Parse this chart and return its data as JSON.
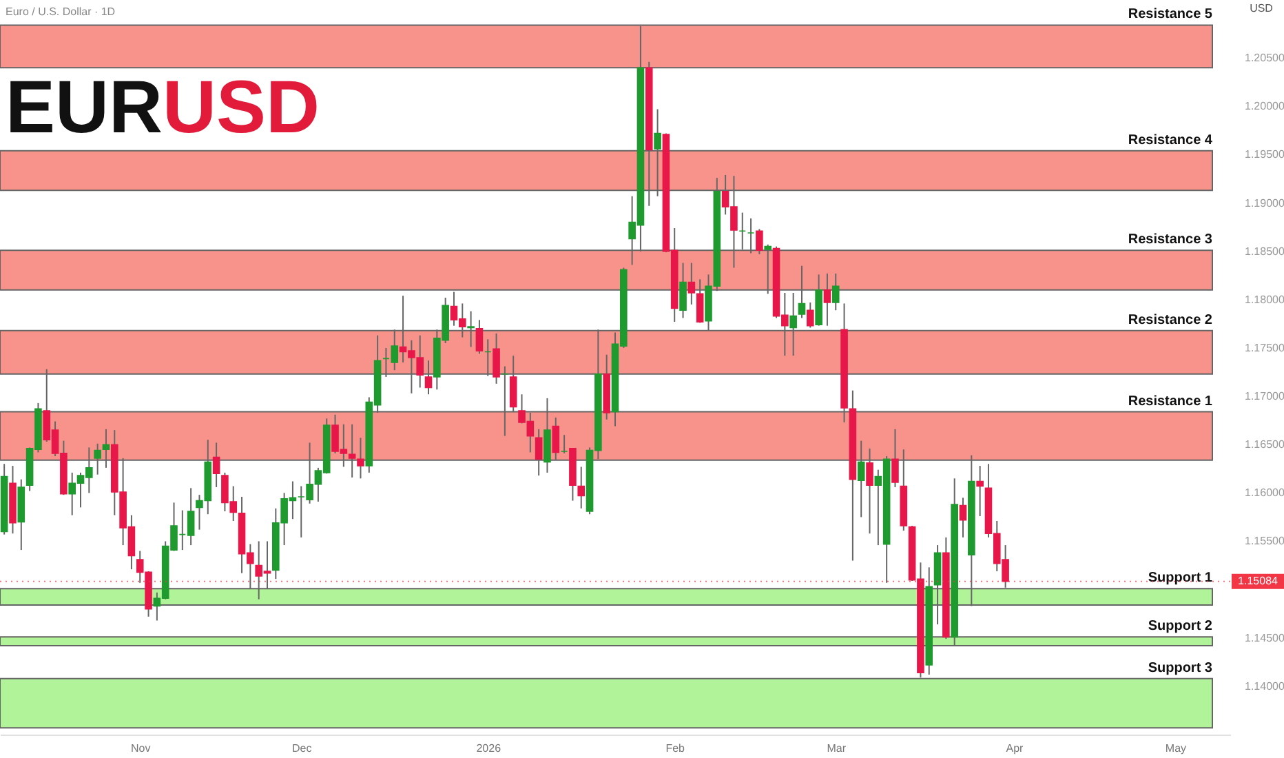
{
  "chart_data": {
    "type": "candlestick",
    "title": "EURUSD",
    "subtitle": "Euro / U.S. Dollar · 1D",
    "ylabel": "USD",
    "categories": [
      null,
      null,
      null,
      null,
      null,
      null,
      null,
      null,
      null,
      null,
      null,
      null,
      null,
      null,
      null,
      null,
      "Nov",
      null,
      null,
      null,
      null,
      null,
      null,
      null,
      null,
      null,
      null,
      null,
      null,
      null,
      null,
      null,
      null,
      null,
      null,
      "Dec",
      null,
      null,
      null,
      null,
      null,
      null,
      null,
      null,
      null,
      null,
      null,
      null,
      null,
      null,
      null,
      null,
      null,
      null,
      null,
      null,
      null,
      "2026",
      null,
      null,
      null,
      null,
      null,
      null,
      null,
      null,
      null,
      null,
      null,
      null,
      null,
      null,
      null,
      null,
      null,
      null,
      null,
      null,
      null,
      "Feb",
      null,
      null,
      null,
      null,
      null,
      null,
      null,
      null,
      null,
      null,
      null,
      null,
      null,
      null,
      null,
      null,
      null,
      null,
      "Mar",
      null,
      null,
      null,
      null,
      null,
      null,
      null,
      null,
      null,
      null,
      null,
      null,
      null,
      null,
      null,
      null,
      null,
      null,
      null,
      null,
      "Apr",
      null,
      null,
      null,
      null,
      null,
      null,
      null,
      null,
      null,
      null,
      null,
      null,
      null,
      null,
      null,
      null,
      null,
      null,
      "May",
      null,
      null,
      null,
      null,
      null,
      null
    ],
    "ohlc": [
      [
        1.156,
        1.163,
        1.1557,
        1.1617
      ],
      [
        1.161,
        1.1628,
        1.1558,
        1.1569
      ],
      [
        1.157,
        1.1614,
        1.1541,
        1.1606
      ],
      [
        1.1608,
        1.1647,
        1.1602,
        1.1646
      ],
      [
        1.1645,
        1.1693,
        1.1642,
        1.1687
      ],
      [
        1.1685,
        1.1728,
        1.1653,
        1.1655
      ],
      [
        1.1665,
        1.1674,
        1.1638,
        1.1641
      ],
      [
        1.1641,
        1.1654,
        1.1598,
        1.1599
      ],
      [
        1.1599,
        1.1621,
        1.1577,
        1.161
      ],
      [
        1.161,
        1.1621,
        1.1585,
        1.1618
      ],
      [
        1.1616,
        1.1647,
        1.16,
        1.1626
      ],
      [
        1.1636,
        1.1651,
        1.1619,
        1.1644
      ],
      [
        1.1645,
        1.1666,
        1.1626,
        1.165
      ],
      [
        1.165,
        1.1665,
        1.1577,
        1.1601
      ],
      [
        1.1601,
        1.1636,
        1.1546,
        1.1564
      ],
      [
        1.1565,
        1.1577,
        1.1521,
        1.1535
      ],
      [
        1.1531,
        1.154,
        1.1507,
        1.1518
      ],
      [
        1.1518,
        1.1519,
        1.1472,
        1.148
      ],
      [
        1.1483,
        1.1497,
        1.1468,
        1.1491
      ],
      [
        1.1491,
        1.155,
        1.149,
        1.1545
      ],
      [
        1.1541,
        1.159,
        1.154,
        1.1566
      ],
      [
        1.1557,
        1.1582,
        1.1541,
        1.1557
      ],
      [
        1.1556,
        1.1605,
        1.1546,
        1.1581
      ],
      [
        1.1585,
        1.1598,
        1.1562,
        1.1592
      ],
      [
        1.1592,
        1.1655,
        1.1578,
        1.1632
      ],
      [
        1.1637,
        1.1652,
        1.1606,
        1.162
      ],
      [
        1.1618,
        1.1621,
        1.1581,
        1.159
      ],
      [
        1.1591,
        1.1607,
        1.1571,
        1.158
      ],
      [
        1.1579,
        1.1596,
        1.1517,
        1.1537
      ],
      [
        1.1538,
        1.1547,
        1.1501,
        1.1527
      ],
      [
        1.1525,
        1.155,
        1.149,
        1.1514
      ],
      [
        1.1519,
        1.155,
        1.1501,
        1.1517
      ],
      [
        1.152,
        1.1584,
        1.1511,
        1.1569
      ],
      [
        1.1569,
        1.16,
        1.1546,
        1.1594
      ],
      [
        1.1592,
        1.1612,
        1.1573,
        1.1595
      ],
      [
        1.1596,
        1.1607,
        1.1554,
        1.1596
      ],
      [
        1.1593,
        1.1652,
        1.1589,
        1.1609
      ],
      [
        1.1609,
        1.1626,
        1.1591,
        1.1623
      ],
      [
        1.1621,
        1.1677,
        1.162,
        1.167
      ],
      [
        1.167,
        1.1681,
        1.1641,
        1.1643
      ],
      [
        1.1645,
        1.1671,
        1.1627,
        1.1641
      ],
      [
        1.164,
        1.1671,
        1.1616,
        1.1636
      ],
      [
        1.1635,
        1.1657,
        1.1615,
        1.1628
      ],
      [
        1.1628,
        1.1699,
        1.1621,
        1.1694
      ],
      [
        1.1691,
        1.1763,
        1.1683,
        1.1737
      ],
      [
        1.1739,
        1.175,
        1.172,
        1.1739
      ],
      [
        1.1735,
        1.1769,
        1.1727,
        1.1752
      ],
      [
        1.1751,
        1.1804,
        1.1735,
        1.1746
      ],
      [
        1.1747,
        1.1758,
        1.1703,
        1.174
      ],
      [
        1.174,
        1.1763,
        1.1709,
        1.1722
      ],
      [
        1.172,
        1.1737,
        1.1702,
        1.1709
      ],
      [
        1.172,
        1.1769,
        1.1707,
        1.176
      ],
      [
        1.1758,
        1.1802,
        1.1755,
        1.1794
      ],
      [
        1.1793,
        1.1808,
        1.1773,
        1.1779
      ],
      [
        1.178,
        1.1796,
        1.1761,
        1.1772
      ],
      [
        1.1772,
        1.1788,
        1.1751,
        1.1771
      ],
      [
        1.177,
        1.1779,
        1.1744,
        1.1747
      ],
      [
        1.1746,
        1.1759,
        1.1721,
        1.1746
      ],
      [
        1.1749,
        1.1765,
        1.1713,
        1.172
      ],
      [
        1.1723,
        1.1731,
        1.1659,
        1.1723
      ],
      [
        1.172,
        1.1742,
        1.1684,
        1.1689
      ],
      [
        1.1685,
        1.1702,
        1.1672,
        1.1673
      ],
      [
        1.1674,
        1.1683,
        1.1642,
        1.1659
      ],
      [
        1.1657,
        1.1666,
        1.1618,
        1.1635
      ],
      [
        1.1632,
        1.1698,
        1.1621,
        1.1665
      ],
      [
        1.1669,
        1.1678,
        1.1634,
        1.1642
      ],
      [
        1.1643,
        1.166,
        1.1641,
        1.1643
      ],
      [
        1.1646,
        1.1646,
        1.1592,
        1.1608
      ],
      [
        1.1607,
        1.1627,
        1.1584,
        1.1597
      ],
      [
        1.1581,
        1.1647,
        1.1578,
        1.1644
      ],
      [
        1.1644,
        1.1769,
        1.1635,
        1.1723
      ],
      [
        1.1723,
        1.1743,
        1.1676,
        1.1683
      ],
      [
        1.1684,
        1.1766,
        1.1669,
        1.1754
      ],
      [
        1.1752,
        1.1833,
        1.175,
        1.1831
      ],
      [
        1.1863,
        1.1907,
        1.1836,
        1.188
      ],
      [
        1.1877,
        1.2083,
        1.185,
        1.204
      ],
      [
        1.204,
        1.2046,
        1.1897,
        1.1955
      ],
      [
        1.1956,
        1.1997,
        1.1907,
        1.1972
      ],
      [
        1.1971,
        1.1972,
        1.1849,
        1.185
      ],
      [
        1.1851,
        1.1874,
        1.1777,
        1.1791
      ],
      [
        1.1789,
        1.1838,
        1.1781,
        1.1818
      ],
      [
        1.1818,
        1.1838,
        1.1795,
        1.1807
      ],
      [
        1.1806,
        1.1821,
        1.1776,
        1.1777
      ],
      [
        1.1778,
        1.1826,
        1.1768,
        1.1814
      ],
      [
        1.1814,
        1.1926,
        1.1809,
        1.1912
      ],
      [
        1.1912,
        1.1929,
        1.1888,
        1.1896
      ],
      [
        1.1896,
        1.1928,
        1.1833,
        1.1872
      ],
      [
        1.1871,
        1.189,
        1.1852,
        1.1871
      ],
      [
        1.1869,
        1.1884,
        1.1848,
        1.1869
      ],
      [
        1.1871,
        1.1873,
        1.1847,
        1.1851
      ],
      [
        1.1852,
        1.1857,
        1.1806,
        1.1855
      ],
      [
        1.1853,
        1.1855,
        1.1781,
        1.1783
      ],
      [
        1.1784,
        1.1807,
        1.1742,
        1.1773
      ],
      [
        1.1771,
        1.1807,
        1.1742,
        1.1783
      ],
      [
        1.1785,
        1.1835,
        1.1781,
        1.1796
      ],
      [
        1.1789,
        1.1797,
        1.1771,
        1.1773
      ],
      [
        1.1774,
        1.1826,
        1.1773,
        1.181
      ],
      [
        1.181,
        1.1827,
        1.1773,
        1.1797
      ],
      [
        1.1797,
        1.1827,
        1.1789,
        1.1814
      ],
      [
        1.1769,
        1.1796,
        1.1673,
        1.1688
      ],
      [
        1.1687,
        1.1706,
        1.153,
        1.1614
      ],
      [
        1.1613,
        1.1654,
        1.1575,
        1.1632
      ],
      [
        1.1631,
        1.1646,
        1.1558,
        1.1608
      ],
      [
        1.1608,
        1.1624,
        1.1546,
        1.1617
      ],
      [
        1.1547,
        1.1638,
        1.1507,
        1.1635
      ],
      [
        1.1635,
        1.1666,
        1.1606,
        1.1611
      ],
      [
        1.1607,
        1.1645,
        1.1561,
        1.1566
      ],
      [
        1.1565,
        1.1566,
        1.1509,
        1.151
      ],
      [
        1.1511,
        1.1528,
        1.1409,
        1.1414
      ],
      [
        1.1422,
        1.1523,
        1.1412,
        1.1503
      ],
      [
        1.1505,
        1.1546,
        1.1464,
        1.1538
      ],
      [
        1.1538,
        1.1554,
        1.1449,
        1.1451
      ],
      [
        1.1451,
        1.1615,
        1.1442,
        1.1588
      ],
      [
        1.1587,
        1.1595,
        1.1554,
        1.1572
      ],
      [
        1.1536,
        1.1639,
        1.1483,
        1.1612
      ],
      [
        1.1612,
        1.1628,
        1.1576,
        1.1607
      ],
      [
        1.1605,
        1.163,
        1.1554,
        1.1558
      ],
      [
        1.1558,
        1.1571,
        1.1519,
        1.1527
      ],
      [
        1.1531,
        1.1546,
        1.1502,
        1.15084
      ],
      null,
      null,
      null,
      null,
      null,
      null,
      null,
      null,
      null,
      null,
      null,
      null,
      null,
      null,
      null,
      null,
      null,
      null,
      null,
      null,
      null,
      null,
      null,
      null,
      null,
      null
    ],
    "colors": [
      "#1e9a2f",
      "#e8174a",
      "#1e9a2f",
      "#1e9a2f",
      "#1e9a2f",
      "#e8174a",
      "#e8174a",
      "#e8174a",
      "#1e9a2f",
      "#1e9a2f",
      "#1e9a2f",
      "#1e9a2f",
      "#1e9a2f",
      "#e8174a",
      "#e8174a",
      "#e8174a",
      "#e8174a",
      "#e8174a",
      "#1e9a2f",
      "#1e9a2f",
      "#1e9a2f",
      "#1e9a2f",
      "#1e9a2f",
      "#1e9a2f",
      "#1e9a2f",
      "#e8174a",
      "#e8174a",
      "#e8174a",
      "#e8174a",
      "#e8174a",
      "#e8174a",
      "#e8174a",
      "#1e9a2f",
      "#1e9a2f",
      "#1e9a2f",
      "#1e9a2f",
      "#1e9a2f",
      "#1e9a2f",
      "#1e9a2f",
      "#e8174a",
      "#e8174a",
      "#e8174a",
      "#e8174a",
      "#1e9a2f",
      "#1e9a2f",
      "#1e9a2f",
      "#1e9a2f",
      "#e8174a",
      "#e8174a",
      "#e8174a",
      "#e8174a",
      "#1e9a2f",
      "#1e9a2f",
      "#e8174a",
      "#e8174a",
      "#1e9a2f",
      "#e8174a",
      "#1e9a2f",
      "#e8174a",
      "#1e9a2f",
      "#e8174a",
      "#e8174a",
      "#e8174a",
      "#e8174a",
      "#1e9a2f",
      "#e8174a",
      "#1e9a2f",
      "#e8174a",
      "#e8174a",
      "#1e9a2f",
      "#1e9a2f",
      "#e8174a",
      "#1e9a2f",
      "#1e9a2f",
      "#1e9a2f",
      "#1e9a2f",
      "#e8174a",
      "#1e9a2f",
      "#e8174a",
      "#e8174a",
      "#1e9a2f",
      "#e8174a",
      "#e8174a",
      "#1e9a2f",
      "#1e9a2f",
      "#e8174a",
      "#e8174a",
      "#1e9a2f",
      "#1e9a2f",
      "#e8174a",
      "#1e9a2f",
      "#e8174a",
      "#e8174a",
      "#1e9a2f",
      "#1e9a2f",
      "#e8174a",
      "#1e9a2f",
      "#e8174a",
      "#1e9a2f",
      "#e8174a",
      "#e8174a",
      "#1e9a2f",
      "#e8174a",
      "#1e9a2f",
      "#1e9a2f",
      "#e8174a",
      "#e8174a",
      "#e8174a",
      "#e8174a",
      "#1e9a2f",
      "#1e9a2f",
      "#e8174a",
      "#1e9a2f",
      "#e8174a",
      "#1e9a2f",
      "#e8174a",
      "#e8174a",
      "#e8174a",
      "#e8174a",
      null,
      null,
      null,
      null,
      null,
      null,
      null,
      null,
      null,
      null,
      null,
      null,
      null,
      null,
      null,
      null,
      null,
      null,
      null,
      null,
      null,
      null,
      null,
      null,
      null,
      null
    ],
    "ylim": [
      1.135,
      1.211
    ],
    "yticks": [
      {
        "value": 1.14,
        "label": "1.14000"
      },
      {
        "value": 1.145,
        "label": "1.14500"
      },
      {
        "value": 1.155,
        "label": "1.15500"
      },
      {
        "value": 1.16,
        "label": "1.16000"
      },
      {
        "value": 1.165,
        "label": "1.16500"
      },
      {
        "value": 1.17,
        "label": "1.17000"
      },
      {
        "value": 1.175,
        "label": "1.17500"
      },
      {
        "value": 1.18,
        "label": "1.18000"
      },
      {
        "value": 1.185,
        "label": "1.18500"
      },
      {
        "value": 1.19,
        "label": "1.19000"
      },
      {
        "value": 1.195,
        "label": "1.19500"
      },
      {
        "value": 1.2,
        "label": "1.20000"
      },
      {
        "value": 1.205,
        "label": "1.20500"
      }
    ],
    "ref_lines": [
      {
        "axis": "y",
        "value": 1.15084,
        "label": "1.15084",
        "color": "#f23645"
      }
    ],
    "bands": [
      {
        "axis": "y",
        "from": 1.204,
        "to": 1.2084,
        "color": "#f8887f",
        "label": "Resistance 5"
      },
      {
        "axis": "y",
        "from": 1.1913,
        "to": 1.1954,
        "color": "#f8887f",
        "label": "Resistance 4"
      },
      {
        "axis": "y",
        "from": 1.181,
        "to": 1.1851,
        "color": "#f8887f",
        "label": "Resistance 3"
      },
      {
        "axis": "y",
        "from": 1.1723,
        "to": 1.1768,
        "color": "#f8887f",
        "label": "Resistance 2"
      },
      {
        "axis": "y",
        "from": 1.1634,
        "to": 1.1684,
        "color": "#f8887f",
        "label": "Resistance 1"
      },
      {
        "axis": "y",
        "from": 1.1484,
        "to": 1.1501,
        "color": "#a9f28d",
        "label": "Support 1"
      },
      {
        "axis": "y",
        "from": 1.1442,
        "to": 1.1451,
        "color": "#a9f28d",
        "label": "Support 2"
      },
      {
        "axis": "y",
        "from": 1.1357,
        "to": 1.1408,
        "color": "#a9f28d",
        "label": "Support 3"
      }
    ],
    "grid": false
  }
}
